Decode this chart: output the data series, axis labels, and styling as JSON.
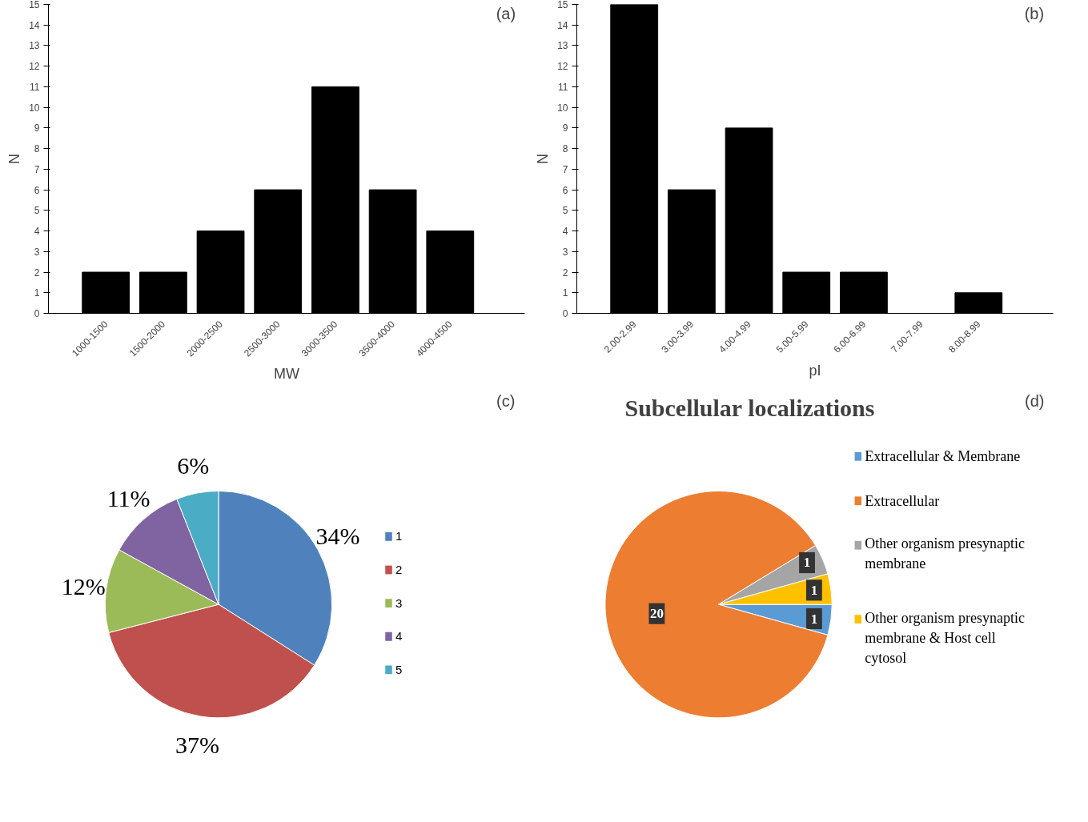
{
  "chart_data": [
    {
      "type": "bar",
      "annotations": [
        "(a)"
      ],
      "xlabel": "MW",
      "ylabel": "N",
      "categories": [
        "1000-1500",
        "1500-2000",
        "2000-2500",
        "2500-3000",
        "3000-3500",
        "3500-4000",
        "4000-4500"
      ],
      "values": [
        2,
        2,
        4,
        6,
        11,
        6,
        4
      ],
      "color": "#000000",
      "ylim": [
        0,
        15
      ],
      "yticks": [
        0,
        1,
        2,
        3,
        4,
        5,
        6,
        7,
        8,
        9,
        10,
        11,
        12,
        13,
        14,
        15
      ],
      "grid": false
    },
    {
      "type": "bar",
      "annotations": [
        "(b)"
      ],
      "xlabel": "pI",
      "ylabel": "N",
      "categories": [
        "2.00-2.99",
        "3.00-3.99",
        "4.00-4.99",
        "5.00-5.99",
        "6.00-6.99",
        "7.00-7.99",
        "8.00-8.99"
      ],
      "values": [
        15,
        6,
        9,
        2,
        2,
        0,
        1
      ],
      "color": "#000000",
      "ylim": [
        0,
        15
      ],
      "yticks": [
        0,
        1,
        2,
        3,
        4,
        5,
        6,
        7,
        8,
        9,
        10,
        11,
        12,
        13,
        14,
        15
      ],
      "grid": false
    },
    {
      "type": "pie",
      "annotations": [
        "(c)"
      ],
      "categories": [
        "1",
        "2",
        "3",
        "4",
        "5"
      ],
      "values": [
        34,
        37,
        12,
        11,
        6
      ],
      "colors": [
        "#4f81bd",
        "#c0504d",
        "#9bbb59",
        "#8064a2",
        "#4bacc6"
      ],
      "value_labels": [
        "34%",
        "37%",
        "12%",
        "11%",
        "6%"
      ],
      "legend": "right"
    },
    {
      "type": "pie",
      "title": "Subcellular localizations",
      "annotations": [
        "(d)"
      ],
      "categories": [
        "Extracellular & Membrane",
        "Extracellular",
        "Other organism presynaptic membrane",
        "Other organism presynaptic membrane & Host cell cytosol"
      ],
      "values": [
        1,
        20,
        1,
        1
      ],
      "colors": [
        "#5b9bd5",
        "#ed7d31",
        "#a5a5a5",
        "#ffc000"
      ],
      "data_labels": true,
      "legend": "right"
    }
  ]
}
